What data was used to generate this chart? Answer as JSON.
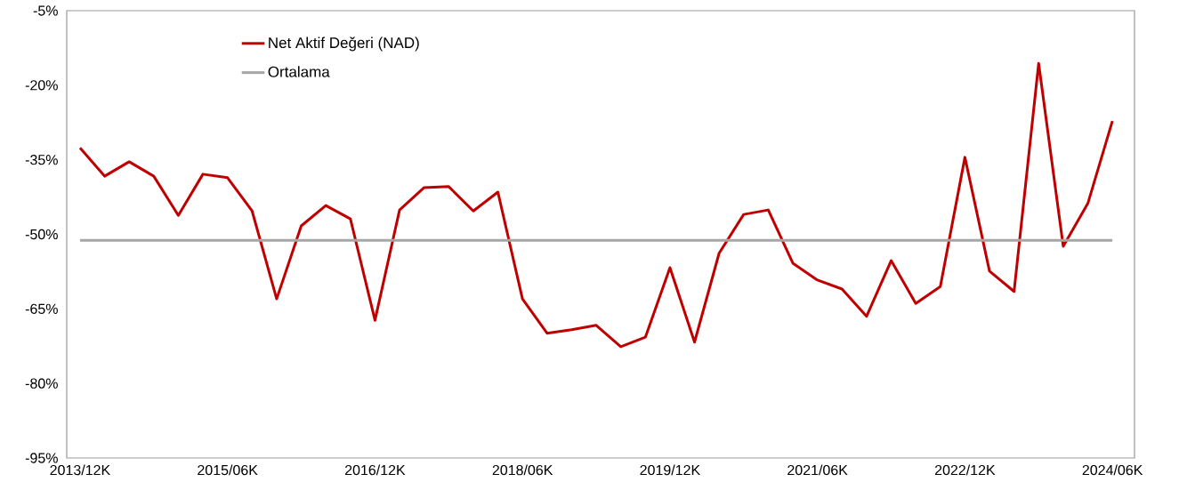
{
  "chart_data": {
    "type": "line",
    "categories": [
      "2013/12K",
      null,
      null,
      null,
      null,
      null,
      "2015/06K",
      null,
      null,
      null,
      null,
      null,
      "2016/12K",
      null,
      null,
      null,
      null,
      null,
      "2018/06K",
      null,
      null,
      null,
      null,
      null,
      "2019/12K",
      null,
      null,
      null,
      null,
      null,
      "2021/06K",
      null,
      null,
      null,
      null,
      null,
      "2022/12K",
      null,
      null,
      null,
      null,
      null,
      "2024/06K"
    ],
    "series": [
      {
        "name": "Net Aktif Değeri (NAD)",
        "color": "#c00000",
        "values": [
          -32.6,
          -38.3,
          -35.4,
          -38.3,
          -46.2,
          -37.9,
          -38.6,
          -45.3,
          -63.0,
          -48.3,
          -44.2,
          -46.9,
          -67.3,
          -45.1,
          -40.6,
          -40.4,
          -45.3,
          -41.5,
          -63.0,
          -69.9,
          -69.2,
          -68.3,
          -72.6,
          -70.7,
          -56.7,
          -71.7,
          -53.8,
          -46.0,
          -45.1,
          -55.8,
          -59.2,
          -61.0,
          -66.5,
          -55.3,
          -63.9,
          -60.5,
          -34.5,
          -57.4,
          -61.5,
          -15.6,
          -52.4,
          -43.8,
          -27.2
        ]
      },
      {
        "name": "Ortalama",
        "color": "#a6a6a6",
        "values": [
          -51.2,
          -51.2,
          -51.2,
          -51.2,
          -51.2,
          -51.2,
          -51.2,
          -51.2,
          -51.2,
          -51.2,
          -51.2,
          -51.2,
          -51.2,
          -51.2,
          -51.2,
          -51.2,
          -51.2,
          -51.2,
          -51.2,
          -51.2,
          -51.2,
          -51.2,
          -51.2,
          -51.2,
          -51.2,
          -51.2,
          -51.2,
          -51.2,
          -51.2,
          -51.2,
          -51.2,
          -51.2,
          -51.2,
          -51.2,
          -51.2,
          -51.2,
          -51.2,
          -51.2,
          -51.2,
          -51.2,
          -51.2,
          -51.2,
          -51.2
        ]
      }
    ],
    "ylim": [
      -95,
      -5
    ],
    "yticks": [
      {
        "value": -95,
        "label": "-95%"
      },
      {
        "value": -80,
        "label": "-80%"
      },
      {
        "value": -65,
        "label": "-65%"
      },
      {
        "value": -50,
        "label": "-50%"
      },
      {
        "value": -35,
        "label": "-35%"
      },
      {
        "value": -20,
        "label": "-20%"
      },
      {
        "value": -5,
        "label": "-5%"
      }
    ],
    "grid": false,
    "legend": "top left",
    "marker": "none",
    "line_style": "solid"
  }
}
